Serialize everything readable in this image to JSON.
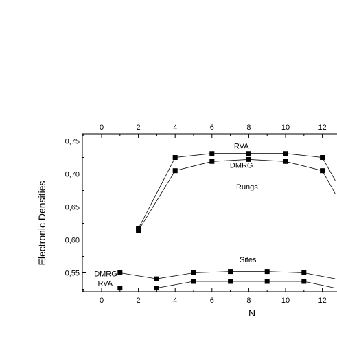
{
  "chart_data": {
    "type": "line",
    "xlabel": "N",
    "ylabel": "Electronic Densities",
    "xlim": [
      -1,
      12.6
    ],
    "ylim": [
      0.525,
      0.75
    ],
    "x_ticks": [
      "0",
      "2",
      "4",
      "6",
      "8",
      "10",
      "12"
    ],
    "x_tick_values": [
      0,
      2,
      4,
      6,
      8,
      10,
      12
    ],
    "y_ticks": [
      "0,55",
      "0,60",
      "0,65",
      "0,70",
      "0,75"
    ],
    "y_tick_values": [
      0.55,
      0.6,
      0.65,
      0.7,
      0.75
    ],
    "annotations": [
      "Rungs",
      "Sites"
    ],
    "series": [
      {
        "name": "RVA",
        "group": "Rungs",
        "x": [
          2,
          4,
          6,
          8,
          10,
          12,
          12.7
        ],
        "y": [
          0.617,
          0.725,
          0.731,
          0.731,
          0.731,
          0.725,
          0.69
        ],
        "markers": [
          true,
          true,
          true,
          true,
          true,
          true,
          false
        ]
      },
      {
        "name": "DMRG",
        "group": "Rungs",
        "x": [
          2,
          4,
          6,
          8,
          10,
          12,
          12.7
        ],
        "y": [
          0.614,
          0.705,
          0.719,
          0.722,
          0.719,
          0.705,
          0.67
        ],
        "markers": [
          true,
          true,
          true,
          true,
          true,
          true,
          false
        ]
      },
      {
        "name": "DMRG",
        "group": "Sites",
        "x": [
          1,
          3,
          5,
          7,
          9,
          11,
          12.7
        ],
        "y": [
          0.55,
          0.541,
          0.55,
          0.552,
          0.552,
          0.55,
          0.541
        ],
        "markers": [
          true,
          true,
          true,
          true,
          true,
          true,
          false
        ]
      },
      {
        "name": "RVA",
        "group": "Sites",
        "x": [
          1,
          3,
          5,
          7,
          9,
          11,
          12.7
        ],
        "y": [
          0.527,
          0.527,
          0.537,
          0.537,
          0.537,
          0.537,
          0.527
        ],
        "markers": [
          true,
          true,
          true,
          true,
          true,
          true,
          false
        ]
      }
    ]
  }
}
